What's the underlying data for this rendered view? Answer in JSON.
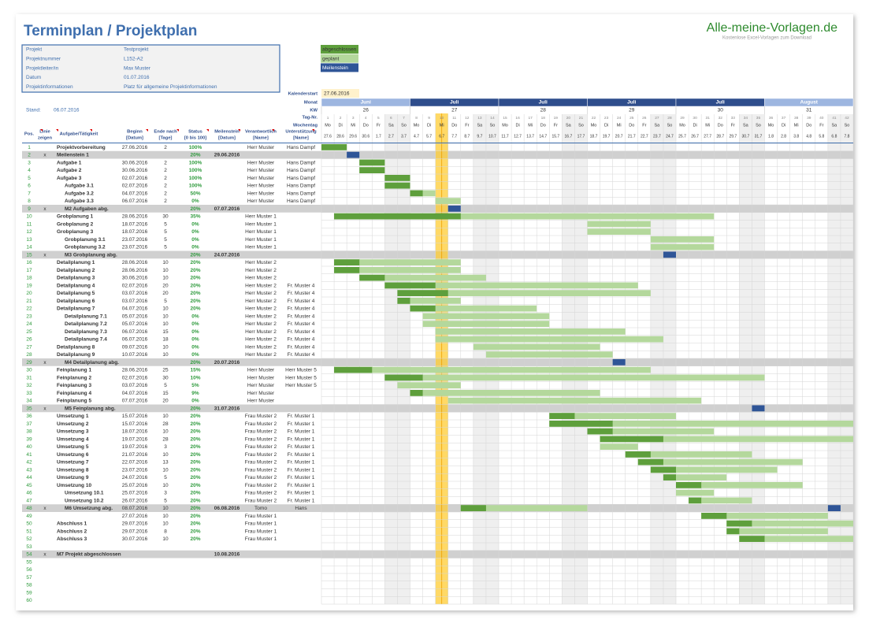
{
  "header": {
    "title": "Terminplan / Projektplan",
    "logo": "Alle-meine-Vorlagen.de",
    "logo_subtitle": "Kostenlose Excel-Vorlagen zum Download"
  },
  "info": [
    {
      "label": "Projekt",
      "value": "Testprojekt"
    },
    {
      "label": "Projektnummer",
      "value": "L152-A2"
    },
    {
      "label": "Projektleiter/in",
      "value": "Max Muster"
    },
    {
      "label": "Datum",
      "value": "01.07.2016"
    },
    {
      "label": "Projektinformationen",
      "value": "Platz für allgemeine Projektinformationen"
    }
  ],
  "stand": {
    "label": "Stand:",
    "value": "06.07.2016"
  },
  "legend": [
    "abgeschlossen",
    "geplant",
    "Meilenstein"
  ],
  "calendar": {
    "start_label": "Kalenderstart",
    "start": "27.06.2016",
    "row_labels": {
      "month": "Monat",
      "week": "KW",
      "day": "Tag-Nr.",
      "weekday": "Wochentag"
    },
    "months": [
      "Juni",
      "Juli",
      "Juli",
      "Juli",
      "Juli",
      "August"
    ],
    "weeks": [
      26,
      27,
      28,
      29,
      30,
      31
    ],
    "day_numbers": [
      1,
      2,
      3,
      4,
      5,
      6,
      7,
      8,
      9,
      10,
      11,
      12,
      13,
      14,
      15,
      16,
      17,
      18,
      19,
      20,
      21,
      22,
      23,
      24,
      25,
      26,
      27,
      28,
      29,
      30,
      31,
      32,
      33,
      34,
      35,
      36,
      37,
      38,
      39,
      40,
      41,
      42
    ],
    "weekdays": [
      "Mo",
      "Di",
      "Mi",
      "Do",
      "Fr",
      "Sa",
      "So",
      "Mo",
      "Di",
      "Mi",
      "Do",
      "Fr",
      "Sa",
      "So",
      "Mo",
      "Di",
      "Mi",
      "Do",
      "Fr",
      "Sa",
      "So",
      "Mo",
      "Di",
      "Mi",
      "Do",
      "Fr",
      "Sa",
      "So",
      "Mo",
      "Di",
      "Mi",
      "Do",
      "Fr",
      "Sa",
      "So",
      "Mo",
      "Di",
      "Mi",
      "Do",
      "Fr",
      "Sa",
      "So"
    ],
    "dates": [
      "27.6",
      "28.6",
      "29.6",
      "30.6",
      "1.7",
      "2.7",
      "3.7",
      "4.7",
      "5.7",
      "6.7",
      "7.7",
      "8.7",
      "9.7",
      "10.7",
      "11.7",
      "12.7",
      "13.7",
      "14.7",
      "15.7",
      "16.7",
      "17.7",
      "18.7",
      "19.7",
      "20.7",
      "21.7",
      "22.7",
      "23.7",
      "24.7",
      "25.7",
      "26.7",
      "27.7",
      "28.7",
      "29.7",
      "30.7",
      "31.7",
      "1.8",
      "2.8",
      "3.8",
      "4.8",
      "5.8",
      "6.8",
      "7.8"
    ]
  },
  "columns": [
    [
      "Pos."
    ],
    [
      "Linie",
      "zeigen"
    ],
    [
      "Aufgabe/Tätigkeit"
    ],
    [
      "Beginn",
      "[Datum]"
    ],
    [
      "Ende nach",
      "[Tage]"
    ],
    [
      "Status",
      "[0 bis 100]"
    ],
    [
      "Meilenstein",
      "[Datum]"
    ],
    [
      "Verantwortlich",
      "[Name]"
    ],
    [
      "Unterstützung",
      "[Name]"
    ]
  ],
  "rows": [
    {
      "pos": 1,
      "task": "Projektvorbereitung",
      "start": "27.06.2016",
      "duration": 2,
      "status": "100%",
      "owner": "Herr Muster",
      "support": "Hans Dampf"
    },
    {
      "pos": 2,
      "line": "x",
      "task": "Meilenstein 1",
      "status": "20%",
      "milestone": "29.06.2016"
    },
    {
      "pos": 3,
      "task": "Aufgabe 1",
      "start": "30.06.2016",
      "duration": 2,
      "status": "100%",
      "owner": "Herr Muster",
      "support": "Hans Dampf"
    },
    {
      "pos": 4,
      "task": "Aufgabe 2",
      "start": "30.06.2016",
      "duration": 2,
      "status": "100%",
      "owner": "Herr Muster",
      "support": "Hans Dampf"
    },
    {
      "pos": 5,
      "task": "Aufgabe 3",
      "start": "02.07.2016",
      "duration": 2,
      "status": "100%",
      "owner": "Herr Muster",
      "support": "Hans Dampf"
    },
    {
      "pos": 6,
      "task": "Aufgabe 3.1",
      "start": "02.07.2016",
      "duration": 2,
      "status": "100%",
      "owner": "Herr Muster",
      "support": "Hans Dampf"
    },
    {
      "pos": 7,
      "task": "Aufgabe 3.2",
      "start": "04.07.2016",
      "duration": 2,
      "status": "50%",
      "owner": "Herr Muster",
      "support": "Hans Dampf"
    },
    {
      "pos": 8,
      "task": "Aufgabe 3.3",
      "start": "06.07.2016",
      "duration": 2,
      "status": "0%",
      "owner": "Herr Muster",
      "support": "Hans Dampf"
    },
    {
      "pos": 9,
      "line": "x",
      "task": "M2 Aufgaben abg.",
      "status": "20%",
      "milestone": "07.07.2016"
    },
    {
      "pos": 10,
      "task": "Grobplanung 1",
      "start": "28.06.2016",
      "duration": 30,
      "status": "35%",
      "owner": "Herr Muster 1"
    },
    {
      "pos": 11,
      "task": "Grobplanung 2",
      "start": "18.07.2016",
      "duration": 5,
      "status": "0%",
      "owner": "Herr Muster 1"
    },
    {
      "pos": 12,
      "task": "Grobplanung 3",
      "start": "18.07.2016",
      "duration": 5,
      "status": "0%",
      "owner": "Herr Muster 1"
    },
    {
      "pos": 13,
      "task": "Grobplanung 3.1",
      "start": "23.07.2016",
      "duration": 5,
      "status": "0%",
      "owner": "Herr Muster 1"
    },
    {
      "pos": 14,
      "task": "Grobplanung 3.2",
      "start": "23.07.2016",
      "duration": 5,
      "status": "0%",
      "owner": "Herr Muster 1"
    },
    {
      "pos": 15,
      "line": "x",
      "task": "M3 Grobplanung abg.",
      "status": "20%",
      "milestone": "24.07.2016"
    },
    {
      "pos": 16,
      "task": "Detailplanung 1",
      "start": "28.06.2016",
      "duration": 10,
      "status": "20%",
      "owner": "Herr Muster 2"
    },
    {
      "pos": 17,
      "task": "Detailplanung 2",
      "start": "28.06.2016",
      "duration": 10,
      "status": "20%",
      "owner": "Herr Muster 2"
    },
    {
      "pos": 18,
      "task": "Detailplanung 3",
      "start": "30.06.2016",
      "duration": 10,
      "status": "20%",
      "owner": "Herr Muster 2"
    },
    {
      "pos": 19,
      "task": "Detailplanung 4",
      "start": "02.07.2016",
      "duration": 20,
      "status": "20%",
      "owner": "Herr Muster 2",
      "support": "Fr. Muster 4"
    },
    {
      "pos": 20,
      "task": "Detailplanung 5",
      "start": "03.07.2016",
      "duration": 20,
      "status": "20%",
      "owner": "Herr Muster 2",
      "support": "Fr. Muster 4"
    },
    {
      "pos": 21,
      "task": "Detailplanung 6",
      "start": "03.07.2016",
      "duration": 5,
      "status": "20%",
      "owner": "Herr Muster 2",
      "support": "Fr. Muster 4"
    },
    {
      "pos": 22,
      "task": "Detailplanung 7",
      "start": "04.07.2016",
      "duration": 10,
      "status": "20%",
      "owner": "Herr Muster 2",
      "support": "Fr. Muster 4"
    },
    {
      "pos": 23,
      "task": "Detailplanung 7.1",
      "start": "05.07.2016",
      "duration": 10,
      "status": "0%",
      "owner": "Herr Muster 2",
      "support": "Fr. Muster 4"
    },
    {
      "pos": 24,
      "task": "Detailplanung 7.2",
      "start": "05.07.2016",
      "duration": 10,
      "status": "0%",
      "owner": "Herr Muster 2",
      "support": "Fr. Muster 4"
    },
    {
      "pos": 25,
      "task": "Detailplanung 7.3",
      "start": "06.07.2016",
      "duration": 15,
      "status": "0%",
      "owner": "Herr Muster 2",
      "support": "Fr. Muster 4"
    },
    {
      "pos": 26,
      "task": "Detailplanung 7.4",
      "start": "06.07.2016",
      "duration": 18,
      "status": "0%",
      "owner": "Herr Muster 2",
      "support": "Fr. Muster 4"
    },
    {
      "pos": 27,
      "task": "Detailplanung 8",
      "start": "09.07.2016",
      "duration": 10,
      "status": "0%",
      "owner": "Herr Muster 2",
      "support": "Fr. Muster 4"
    },
    {
      "pos": 28,
      "task": "Detailplanung 9",
      "start": "10.07.2016",
      "duration": 10,
      "status": "0%",
      "owner": "Herr Muster 2",
      "support": "Fr. Muster 4"
    },
    {
      "pos": 29,
      "line": "x",
      "task": "M4 Detailplanung abg.",
      "status": "20%",
      "milestone": "20.07.2016"
    },
    {
      "pos": 30,
      "task": "Feinplanung 1",
      "start": "28.06.2016",
      "duration": 25,
      "status": "15%",
      "owner": "Herr Muster",
      "support": "Herr Muster 5"
    },
    {
      "pos": 31,
      "task": "Feinplanung 2",
      "start": "02.07.2016",
      "duration": 30,
      "status": "10%",
      "owner": "Herr Muster",
      "support": "Herr Muster 5"
    },
    {
      "pos": 32,
      "task": "Feinplanung 3",
      "start": "03.07.2016",
      "duration": 5,
      "status": "5%",
      "owner": "Herr Muster",
      "support": "Herr Muster 5"
    },
    {
      "pos": 33,
      "task": "Feinplanung 4",
      "start": "04.07.2016",
      "duration": 15,
      "status": "9%",
      "owner": "Herr Muster"
    },
    {
      "pos": 34,
      "task": "Feinplanung 5",
      "start": "07.07.2016",
      "duration": 20,
      "status": "0%",
      "owner": "Herr Muster"
    },
    {
      "pos": 35,
      "line": "x",
      "task": "M5 Feinplanung abg.",
      "status": "20%",
      "milestone": "31.07.2016"
    },
    {
      "pos": 36,
      "task": "Umsetzung 1",
      "start": "15.07.2016",
      "duration": 10,
      "status": "20%",
      "owner": "Frau Muster 2",
      "support": "Fr. Muster 1"
    },
    {
      "pos": 37,
      "task": "Umsetzung 2",
      "start": "15.07.2016",
      "duration": 28,
      "status": "20%",
      "owner": "Frau Muster 2",
      "support": "Fr. Muster 1"
    },
    {
      "pos": 38,
      "task": "Umsetzung 3",
      "start": "18.07.2016",
      "duration": 10,
      "status": "20%",
      "owner": "Frau Muster 2",
      "support": "Fr. Muster 1"
    },
    {
      "pos": 39,
      "task": "Umsetzung 4",
      "start": "19.07.2016",
      "duration": 28,
      "status": "20%",
      "owner": "Frau Muster 2",
      "support": "Fr. Muster 1"
    },
    {
      "pos": 40,
      "task": "Umsetzung 5",
      "start": "19.07.2016",
      "duration": 3,
      "status": "20%",
      "owner": "Frau Muster 2",
      "support": "Fr. Muster 1"
    },
    {
      "pos": 41,
      "task": "Umsetzung 6",
      "start": "21.07.2016",
      "duration": 10,
      "status": "20%",
      "owner": "Frau Muster 2",
      "support": "Fr. Muster 1"
    },
    {
      "pos": 42,
      "task": "Umsetzung 7",
      "start": "22.07.2016",
      "duration": 13,
      "status": "20%",
      "owner": "Frau Muster 2",
      "support": "Fr. Muster 1"
    },
    {
      "pos": 43,
      "task": "Umsetzung 8",
      "start": "23.07.2016",
      "duration": 10,
      "status": "20%",
      "owner": "Frau Muster 2",
      "support": "Fr. Muster 1"
    },
    {
      "pos": 44,
      "task": "Umsetzung 9",
      "start": "24.07.2016",
      "duration": 5,
      "status": "20%",
      "owner": "Frau Muster 2",
      "support": "Fr. Muster 1"
    },
    {
      "pos": 45,
      "task": "Umsetzung 10",
      "start": "25.07.2016",
      "duration": 10,
      "status": "20%",
      "owner": "Frau Muster 2",
      "support": "Fr. Muster 1"
    },
    {
      "pos": 46,
      "task": "Umsetzung 10.1",
      "start": "25.07.2016",
      "duration": 3,
      "status": "20%",
      "owner": "Frau Muster 2",
      "support": "Fr. Muster 1"
    },
    {
      "pos": 47,
      "task": "Umsetzung 10.2",
      "start": "26.07.2016",
      "duration": 5,
      "status": "20%",
      "owner": "Frau Muster 2",
      "support": "Fr. Muster 1"
    },
    {
      "pos": 48,
      "line": "x",
      "task": "M6 Umsetzung abg.",
      "start": "08.07.2016",
      "duration": 10,
      "status": "20%",
      "milestone": "06.08.2016",
      "owner": "Tomo",
      "support": "Hans"
    },
    {
      "pos": 49,
      "start": "27.07.2016",
      "duration": 10,
      "status": "20%",
      "owner": "Frau Muster 1"
    },
    {
      "pos": 50,
      "task": "Abschluss 1",
      "start": "29.07.2016",
      "duration": 10,
      "status": "20%",
      "owner": "Frau Muster 1"
    },
    {
      "pos": 51,
      "task": "Abschluss 2",
      "start": "29.07.2016",
      "duration": 8,
      "status": "20%",
      "owner": "Frau Muster 1"
    },
    {
      "pos": 52,
      "task": "Abschluss 3",
      "start": "30.07.2016",
      "duration": 10,
      "status": "20%",
      "owner": "Frau Muster 1"
    },
    {
      "pos": 53
    },
    {
      "pos": 54,
      "line": "x",
      "task": "M7 Projekt abgeschlossen",
      "milestone": "10.08.2016"
    },
    {
      "pos": 55
    },
    {
      "pos": 56
    },
    {
      "pos": 57
    },
    {
      "pos": 58
    },
    {
      "pos": 59
    },
    {
      "pos": 60
    }
  ]
}
